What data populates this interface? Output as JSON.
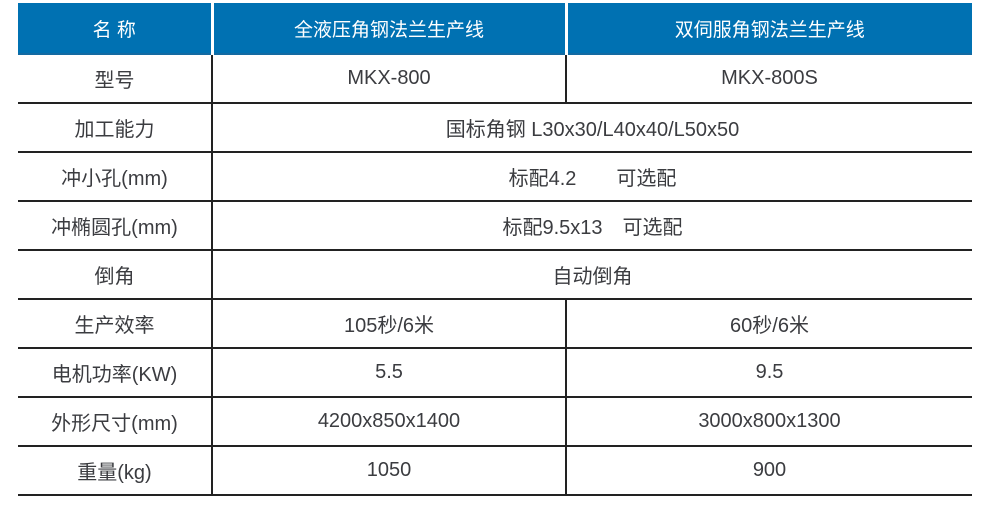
{
  "table": {
    "colors": {
      "header_bg": "#0071b2",
      "header_text": "#ffffff",
      "body_text": "#3b3c40",
      "grid_line": "#222222"
    },
    "header": {
      "col1": "名 称",
      "col2": "全液压角钢法兰生产线",
      "col3": "双伺服角钢法兰生产线"
    },
    "rows": [
      {
        "label": "型号",
        "v1": "MKX-800",
        "v2": "MKX-800S"
      },
      {
        "label": "加工能力",
        "merged": "国标角钢 L30x30/L40x40/L50x50"
      },
      {
        "label": "冲小孔(mm)",
        "merged": "标配4.2　　可选配"
      },
      {
        "label": "冲椭圆孔(mm)",
        "merged": "标配9.5x13　可选配"
      },
      {
        "label": "倒角",
        "merged": "自动倒角"
      },
      {
        "label": "生产效率",
        "v1": "105秒/6米",
        "v2": "60秒/6米"
      },
      {
        "label": "电机功率(KW)",
        "v1": "5.5",
        "v2": "9.5"
      },
      {
        "label": "外形尺寸(mm)",
        "v1": "4200x850x1400",
        "v2": "3000x800x1300"
      },
      {
        "label": "重量(kg)",
        "v1": "1050",
        "v2": "900"
      }
    ]
  }
}
